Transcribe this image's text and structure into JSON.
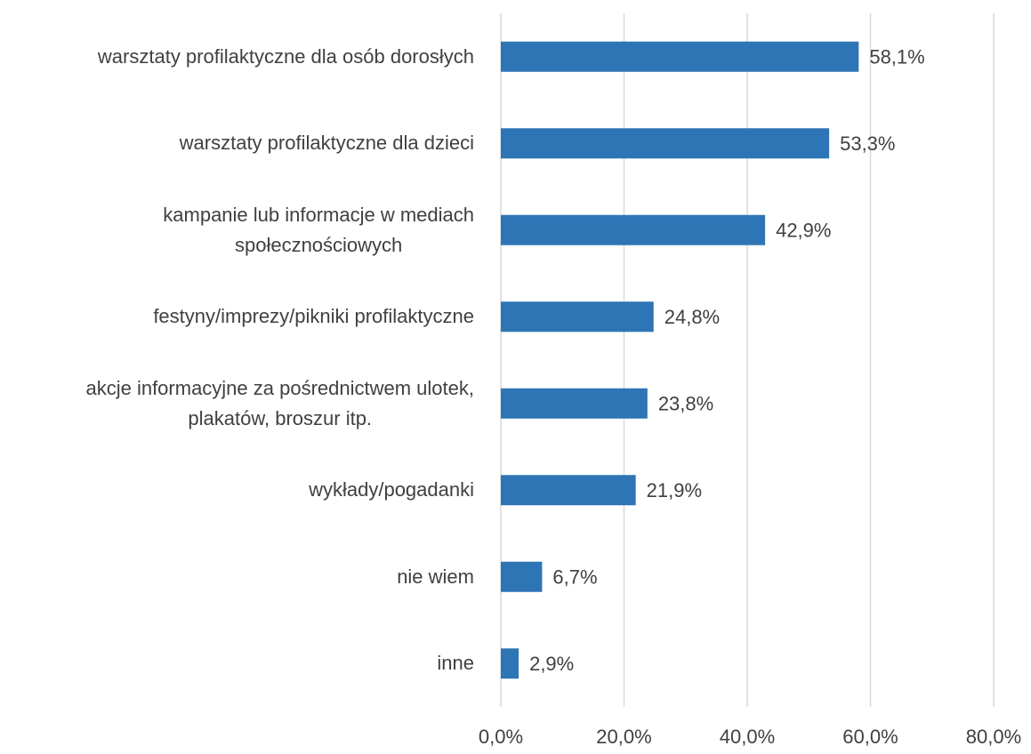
{
  "chart_data": {
    "type": "bar",
    "orientation": "horizontal",
    "categories": [
      "warsztaty profilaktyczne dla osób dorosłych",
      "warsztaty profilaktyczne dla dzieci",
      "kampanie lub informacje w mediach\nspołecznościowych",
      "festyny/imprezy/pikniki profilaktyczne",
      "akcje informacyjne za pośrednictwem ulotek,\nplakatów, broszur itp.",
      "wykłady/pogadanki",
      "nie wiem",
      "inne"
    ],
    "values": [
      58.1,
      53.3,
      42.9,
      24.8,
      23.8,
      21.9,
      6.7,
      2.9
    ],
    "value_labels": [
      "58,1%",
      "53,3%",
      "42,9%",
      "24,8%",
      "23,8%",
      "21,9%",
      "6,7%",
      "2,9%"
    ],
    "color": "#2e75b6",
    "xlim": [
      0,
      80
    ],
    "xticks": [
      {
        "value": 0,
        "label": "0,0%"
      },
      {
        "value": 20,
        "label": "20,0%"
      },
      {
        "value": 40,
        "label": "40,0%"
      },
      {
        "value": 60,
        "label": "60,0%"
      },
      {
        "value": 80,
        "label": "80,0%"
      }
    ],
    "grid": true
  }
}
